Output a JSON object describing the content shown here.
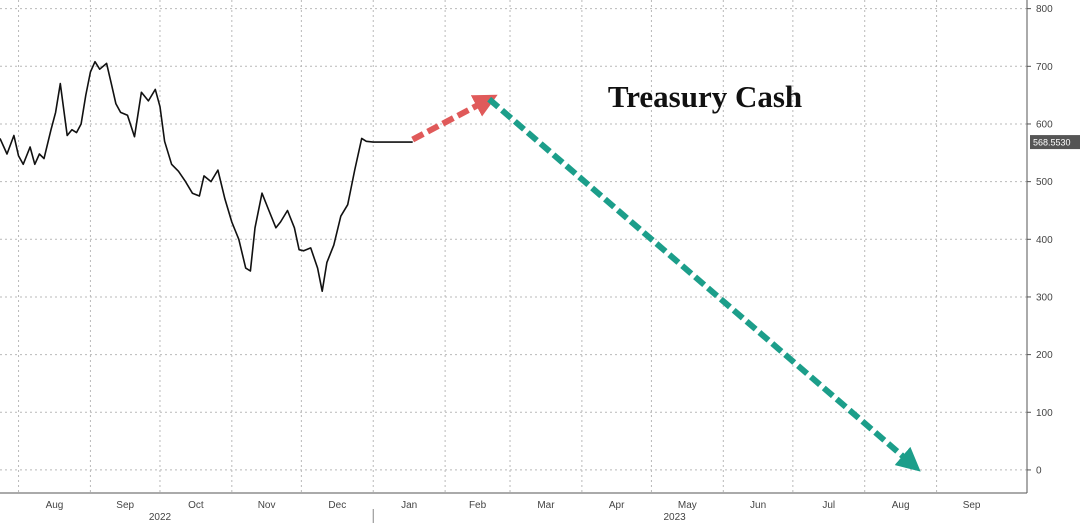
{
  "chart_data": {
    "type": "line",
    "title": "Treasury Cash",
    "y_ticks": [
      0,
      100,
      200,
      300,
      400,
      500,
      600,
      700,
      800
    ],
    "ylim": [
      -40,
      815
    ],
    "xlim": [
      "2022-07-24",
      "2023-10-10"
    ],
    "x_tick_labels": [
      {
        "label": "Aug",
        "date": "2022-08-01"
      },
      {
        "label": "Sep",
        "date": "2022-09-01"
      },
      {
        "label": "Oct",
        "date": "2022-10-01"
      },
      {
        "label": "Nov",
        "date": "2022-11-01"
      },
      {
        "label": "Dec",
        "date": "2022-12-01"
      },
      {
        "label": "Jan",
        "date": "2023-01-01"
      },
      {
        "label": "Feb",
        "date": "2023-02-01"
      },
      {
        "label": "Mar",
        "date": "2023-03-01"
      },
      {
        "label": "Apr",
        "date": "2023-04-01"
      },
      {
        "label": "May",
        "date": "2023-05-01"
      },
      {
        "label": "Jun",
        "date": "2023-06-01"
      },
      {
        "label": "Jul",
        "date": "2023-07-01"
      },
      {
        "label": "Aug",
        "date": "2023-08-01"
      },
      {
        "label": "Sep",
        "date": "2023-09-01"
      }
    ],
    "year_labels": [
      {
        "label": "2022",
        "date": "2022-10-01"
      },
      {
        "label": "2023",
        "date": "2023-05-11"
      }
    ],
    "year_divider": "2023-01-01",
    "last_value_label": "568.5530",
    "grid": true,
    "series": [
      {
        "x": [
          "2022-07-24",
          "2022-07-27",
          "2022-07-30",
          "2022-08-01",
          "2022-08-03",
          "2022-08-06",
          "2022-08-08",
          "2022-08-10",
          "2022-08-12",
          "2022-08-15",
          "2022-08-17",
          "2022-08-19",
          "2022-08-22",
          "2022-08-24",
          "2022-08-26",
          "2022-08-28",
          "2022-08-30",
          "2022-09-01",
          "2022-09-03",
          "2022-09-05",
          "2022-09-08",
          "2022-09-10",
          "2022-09-12",
          "2022-09-14",
          "2022-09-17",
          "2022-09-20",
          "2022-09-23",
          "2022-09-26",
          "2022-09-29",
          "2022-10-01",
          "2022-10-03",
          "2022-10-06",
          "2022-10-09",
          "2022-10-12",
          "2022-10-15",
          "2022-10-18",
          "2022-10-20",
          "2022-10-23",
          "2022-10-26",
          "2022-10-29",
          "2022-11-01",
          "2022-11-04",
          "2022-11-07",
          "2022-11-09",
          "2022-11-11",
          "2022-11-14",
          "2022-11-17",
          "2022-11-20",
          "2022-11-22",
          "2022-11-25",
          "2022-11-28",
          "2022-11-30",
          "2022-12-02",
          "2022-12-05",
          "2022-12-08",
          "2022-12-10",
          "2022-12-12",
          "2022-12-15",
          "2022-12-18",
          "2022-12-21",
          "2022-12-24",
          "2022-12-27",
          "2022-12-29",
          "2023-01-01",
          "2023-01-03",
          "2023-01-05",
          "2023-01-07",
          "2023-01-09",
          "2023-01-11",
          "2023-01-13",
          "2023-01-16",
          "2023-01-18"
        ],
        "y": [
          575,
          548,
          580,
          545,
          530,
          560,
          530,
          548,
          540,
          590,
          620,
          670,
          580,
          590,
          585,
          600,
          650,
          690,
          708,
          695,
          705,
          670,
          635,
          620,
          615,
          578,
          655,
          640,
          660,
          630,
          570,
          530,
          518,
          500,
          480,
          475,
          510,
          500,
          520,
          470,
          430,
          400,
          350,
          345,
          420,
          480,
          450,
          420,
          430,
          450,
          420,
          382,
          380,
          385,
          350,
          310,
          360,
          390,
          440,
          460,
          520,
          575,
          570,
          568.6,
          568.6,
          568.6,
          568.6,
          568.6,
          568.6,
          568.6,
          568.6,
          568.6
        ]
      }
    ],
    "annotations": [
      {
        "type": "arrow",
        "color": "#e05a5a",
        "from": {
          "date": "2023-01-18",
          "value": 573
        },
        "to": {
          "date": "2023-02-20",
          "value": 643
        }
      },
      {
        "type": "arrow",
        "color": "#1c9e8a",
        "from": {
          "date": "2023-02-20",
          "value": 643
        },
        "to": {
          "date": "2023-08-22",
          "value": 8
        }
      }
    ]
  }
}
